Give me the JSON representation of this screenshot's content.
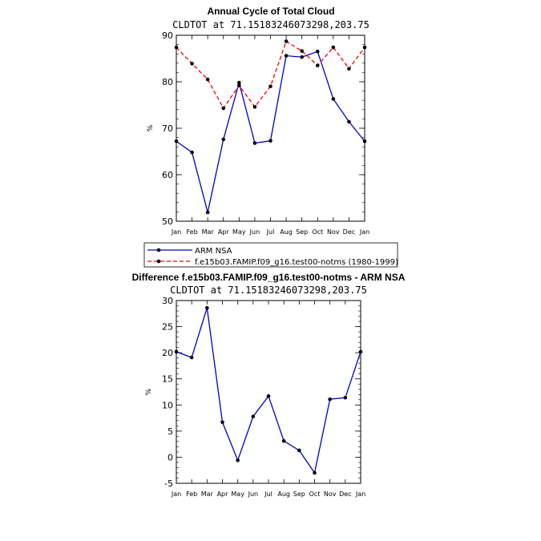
{
  "colors": {
    "obs": "#0000cc",
    "model": "#ff0000",
    "diff": "#0000cc",
    "marker": "#000000"
  },
  "chart_data": [
    {
      "type": "line",
      "title": "Annual Cycle of Total Cloud",
      "subtitle": "CLDTOT at 71.15183246073298,203.75",
      "ylabel": "%",
      "categories": [
        "Jan",
        "Feb",
        "Mar",
        "Apr",
        "May",
        "Jun",
        "Jul",
        "Aug",
        "Sep",
        "Oct",
        "Nov",
        "Dec",
        "Jan"
      ],
      "ylim": [
        50,
        90
      ],
      "yticks": [
        50,
        60,
        70,
        80,
        90
      ],
      "series": [
        {
          "name": "ARM NSA",
          "style": "solid",
          "colorKey": "obs",
          "values": [
            67.2,
            64.8,
            51.9,
            67.6,
            79.8,
            66.8,
            67.3,
            85.6,
            85.3,
            86.5,
            76.3,
            71.4,
            67.2
          ]
        },
        {
          "name": "f.e15b03.FAMIP.f09_g16.test00-notms (1980-1999)",
          "style": "dashed",
          "colorKey": "model",
          "values": [
            87.4,
            83.9,
            80.5,
            74.3,
            79.2,
            74.6,
            79.0,
            88.7,
            86.6,
            83.5,
            87.4,
            82.8,
            87.4
          ]
        }
      ]
    },
    {
      "type": "line",
      "title": "Difference f.e15b03.FAMIP.f09_g16.test00-notms - ARM NSA",
      "subtitle": "CLDTOT at 71.15183246073298,203.75",
      "ylabel": "%",
      "categories": [
        "Jan",
        "Feb",
        "Mar",
        "Apr",
        "May",
        "Jun",
        "Jul",
        "Aug",
        "Sep",
        "Oct",
        "Nov",
        "Dec",
        "Jan"
      ],
      "ylim": [
        -5,
        30
      ],
      "yticks": [
        -5,
        0,
        5,
        10,
        15,
        20,
        25,
        30
      ],
      "series": [
        {
          "name": "Difference",
          "style": "solid",
          "colorKey": "diff",
          "values": [
            20.2,
            19.1,
            28.6,
            6.7,
            -0.6,
            7.8,
            11.7,
            3.1,
            1.3,
            -3.0,
            11.1,
            11.4,
            20.2
          ]
        }
      ]
    }
  ]
}
